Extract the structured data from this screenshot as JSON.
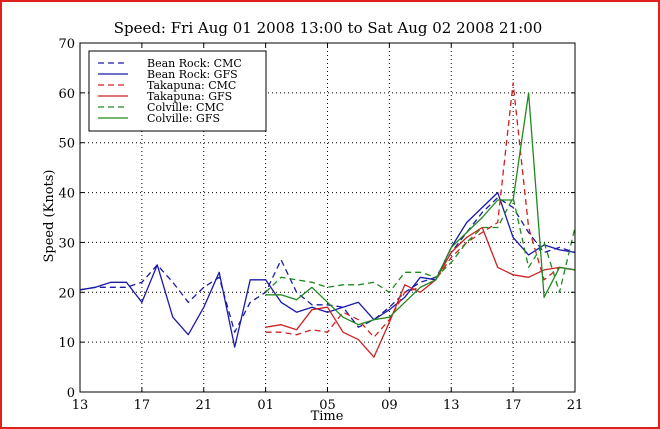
{
  "chart_data": {
    "type": "line",
    "title": "Speed: Fri Aug 01 2008 13:00 to Sat Aug 02 2008 21:00",
    "xlabel": "Time",
    "ylabel": "Speed (Knots)",
    "x_range_hours": [
      13,
      45
    ],
    "ylim": [
      0,
      70
    ],
    "x_tick_values": [
      13,
      17,
      21,
      25,
      29,
      33,
      37,
      41,
      45
    ],
    "x_tick_labels": [
      "13",
      "17",
      "21",
      "01",
      "05",
      "09",
      "13",
      "17",
      "21"
    ],
    "y_ticks": [
      0,
      10,
      20,
      30,
      40,
      50,
      60,
      70
    ],
    "grid": true,
    "legend_position": "upper-left",
    "series": [
      {
        "name": "Bean Rock: CMC",
        "color": "#1a1aa8",
        "dash": true,
        "x": [
          13,
          14,
          15,
          16,
          17,
          18,
          19,
          20,
          21,
          22,
          23,
          24,
          25,
          26,
          27,
          28,
          29,
          30,
          31,
          32,
          33,
          34,
          35,
          36,
          37,
          38,
          39,
          40,
          41,
          42,
          43,
          44,
          45
        ],
        "y": [
          20.5,
          21,
          21,
          21,
          22,
          25.5,
          22,
          18,
          21,
          23,
          12,
          18,
          20,
          26.5,
          20,
          17.5,
          17.5,
          17,
          13,
          14.5,
          17,
          20,
          22,
          23,
          28,
          32,
          36,
          39,
          37,
          32,
          28,
          29,
          28
        ]
      },
      {
        "name": "Bean Rock: GFS",
        "color": "#1a1aa8",
        "dash": false,
        "x": [
          13,
          14,
          15,
          16,
          17,
          18,
          19,
          20,
          21,
          22,
          23,
          24,
          25,
          26,
          27,
          28,
          29,
          30,
          31,
          32,
          33,
          34,
          35,
          36,
          37,
          38,
          39,
          40,
          41,
          42,
          43,
          44,
          45
        ],
        "y": [
          20.5,
          21,
          22,
          22,
          18,
          25.5,
          15,
          11.5,
          17,
          24,
          9,
          22.5,
          22.5,
          18,
          16,
          17,
          16,
          17,
          18,
          14.5,
          16.5,
          19,
          23,
          22.5,
          29,
          34,
          37,
          40,
          31,
          27.5,
          29.5,
          28.5,
          28
        ]
      },
      {
        "name": "Takapuna: CMC",
        "color": "#cc2222",
        "dash": true,
        "x": [
          25,
          26,
          27,
          28,
          29,
          30,
          31,
          32,
          33,
          34,
          35,
          36,
          37,
          38,
          39,
          40,
          41,
          42,
          43,
          44,
          45
        ],
        "y": [
          12,
          12,
          11.5,
          12.5,
          12,
          16,
          14.5,
          11,
          14.5,
          20,
          21,
          22.5,
          27,
          30,
          32,
          34,
          62,
          33,
          22.5,
          25,
          24.5
        ]
      },
      {
        "name": "Takapuna: GFS",
        "color": "#cc2222",
        "dash": false,
        "x": [
          25,
          26,
          27,
          28,
          29,
          30,
          31,
          32,
          33,
          34,
          35,
          36,
          37,
          38,
          39,
          40,
          41,
          42,
          43,
          44,
          45
        ],
        "y": [
          13,
          13.5,
          12.5,
          16.5,
          17,
          12,
          10.5,
          7,
          14,
          21.5,
          20,
          22.5,
          28,
          31,
          33,
          25,
          23.5,
          23,
          24.5,
          25,
          24.5
        ]
      },
      {
        "name": "Colville: CMC",
        "color": "#1f8a1f",
        "dash": true,
        "x": [
          25,
          26,
          27,
          28,
          29,
          30,
          31,
          32,
          33,
          34,
          35,
          36,
          37,
          38,
          39,
          40,
          41,
          42,
          43,
          44,
          45
        ],
        "y": [
          20,
          23,
          22.5,
          22,
          21,
          21.5,
          21.5,
          22,
          20,
          24,
          24,
          23,
          26,
          30,
          33,
          33,
          39,
          25,
          30,
          20,
          33
        ]
      },
      {
        "name": "Colville: GFS",
        "color": "#1f8a1f",
        "dash": false,
        "x": [
          25,
          26,
          27,
          28,
          29,
          30,
          31,
          32,
          33,
          34,
          35,
          36,
          37,
          38,
          39,
          40,
          41,
          42,
          43,
          44,
          45
        ],
        "y": [
          19.5,
          19.5,
          18.5,
          21,
          18,
          15,
          13.5,
          14.5,
          15,
          18,
          21,
          22.5,
          29,
          32,
          35,
          38.5,
          38.5,
          60,
          19,
          25,
          24.5
        ]
      }
    ]
  }
}
